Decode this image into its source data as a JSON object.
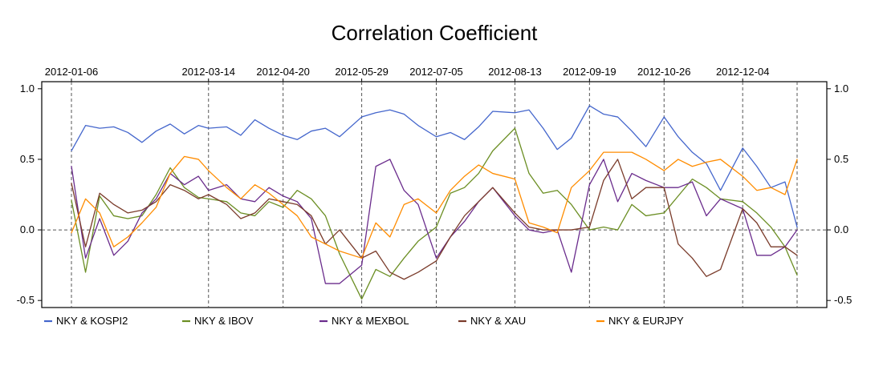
{
  "chart_data": {
    "type": "line",
    "title": "Correlation Coefficient",
    "xlabel": "",
    "ylabel": "",
    "ylim": [
      -0.55,
      1.05
    ],
    "yticks": [
      1.0,
      0.5,
      0.0,
      -0.5
    ],
    "ytick_labels": [
      "1.0",
      "0.5",
      "0.0",
      "-0.5"
    ],
    "x_tick_labels": [
      "2012-01-06",
      "2012-03-14",
      "2012-04-20",
      "2012-05-29",
      "2012-07-05",
      "2012-08-13",
      "2012-09-19",
      "2012-10-26",
      "2012-12-04"
    ],
    "grid": "dashed vertical lines at date ticks and dashed horizontal line at 0.0",
    "legend_placement": "bottom",
    "legend_format": "{a}  &  {b}",
    "colors": {
      "NKY & KOSPI2": "#4466cc",
      "NKY & IBOV": "#6b8e23",
      "NKY & MEXBOL": "#6a2c8c",
      "NKY & XAU": "#7a3b2a",
      "NKY & EURJPY": "#ff8c00"
    },
    "x": [
      "2012-01-06",
      "2012-01-13",
      "2012-01-20",
      "2012-01-27",
      "2012-02-03",
      "2012-02-10",
      "2012-02-17",
      "2012-02-24",
      "2012-03-02",
      "2012-03-09",
      "2012-03-14",
      "2012-03-23",
      "2012-03-30",
      "2012-04-06",
      "2012-04-13",
      "2012-04-20",
      "2012-04-27",
      "2012-05-04",
      "2012-05-11",
      "2012-05-18",
      "2012-05-29",
      "2012-06-05",
      "2012-06-12",
      "2012-06-19",
      "2012-06-26",
      "2012-07-05",
      "2012-07-12",
      "2012-07-19",
      "2012-07-26",
      "2012-08-02",
      "2012-08-13",
      "2012-08-20",
      "2012-08-27",
      "2012-09-03",
      "2012-09-10",
      "2012-09-19",
      "2012-09-26",
      "2012-10-03",
      "2012-10-10",
      "2012-10-17",
      "2012-10-26",
      "2012-11-02",
      "2012-11-09",
      "2012-11-16",
      "2012-11-23",
      "2012-12-04",
      "2012-12-11",
      "2012-12-18",
      "2012-12-25",
      "2012-12-31"
    ],
    "series": [
      {
        "name": "NKY & KOSPI2",
        "values": [
          0.56,
          0.74,
          0.72,
          0.73,
          0.69,
          0.62,
          0.7,
          0.75,
          0.68,
          0.74,
          0.72,
          0.73,
          0.67,
          0.78,
          0.72,
          0.67,
          0.64,
          0.7,
          0.72,
          0.66,
          0.8,
          0.83,
          0.85,
          0.82,
          0.74,
          0.66,
          0.69,
          0.64,
          0.73,
          0.84,
          0.83,
          0.85,
          0.72,
          0.57,
          0.65,
          0.88,
          0.82,
          0.8,
          0.7,
          0.59,
          0.8,
          0.66,
          0.55,
          0.47,
          0.28,
          0.58,
          0.45,
          0.3,
          0.34,
          0.02
        ]
      },
      {
        "name": "NKY & IBOV",
        "values": [
          0.21,
          -0.3,
          0.24,
          0.1,
          0.08,
          0.1,
          0.25,
          0.44,
          0.3,
          0.23,
          0.22,
          0.2,
          0.12,
          0.1,
          0.2,
          0.16,
          0.28,
          0.22,
          0.1,
          -0.17,
          -0.49,
          -0.28,
          -0.33,
          -0.2,
          -0.08,
          0.02,
          0.26,
          0.3,
          0.4,
          0.56,
          0.72,
          0.4,
          0.26,
          0.28,
          0.18,
          0.0,
          0.02,
          0.0,
          0.18,
          0.1,
          0.12,
          0.24,
          0.36,
          0.3,
          0.22,
          0.2,
          0.12,
          0.02,
          -0.12,
          -0.32
        ]
      },
      {
        "name": "NKY & MEXBOL",
        "values": [
          0.45,
          -0.2,
          0.08,
          -0.18,
          -0.08,
          0.12,
          0.22,
          0.4,
          0.32,
          0.38,
          0.28,
          0.32,
          0.22,
          0.2,
          0.3,
          0.24,
          0.2,
          0.08,
          -0.38,
          -0.38,
          -0.25,
          0.45,
          0.5,
          0.28,
          0.18,
          -0.2,
          -0.05,
          0.06,
          0.2,
          0.3,
          0.1,
          0.0,
          -0.02,
          0.0,
          -0.3,
          0.32,
          0.5,
          0.2,
          0.4,
          0.35,
          0.3,
          0.3,
          0.34,
          0.1,
          0.22,
          0.15,
          -0.18,
          -0.18,
          -0.12,
          0.0
        ]
      },
      {
        "name": "NKY & XAU",
        "values": [
          0.33,
          -0.12,
          0.26,
          0.18,
          0.12,
          0.14,
          0.2,
          0.32,
          0.28,
          0.22,
          0.25,
          0.18,
          0.08,
          0.12,
          0.22,
          0.2,
          0.18,
          0.1,
          -0.1,
          0.0,
          -0.2,
          -0.15,
          -0.3,
          -0.35,
          -0.3,
          -0.22,
          -0.05,
          0.1,
          0.2,
          0.3,
          0.12,
          0.02,
          0.0,
          0.0,
          0.0,
          0.02,
          0.35,
          0.5,
          0.22,
          0.3,
          0.3,
          -0.1,
          -0.2,
          -0.33,
          -0.28,
          0.15,
          0.05,
          -0.12,
          -0.12,
          -0.18
        ]
      },
      {
        "name": "NKY & EURJPY",
        "values": [
          -0.02,
          0.22,
          0.12,
          -0.12,
          -0.05,
          0.05,
          0.16,
          0.4,
          0.52,
          0.5,
          0.42,
          0.3,
          0.22,
          0.32,
          0.26,
          0.18,
          0.1,
          -0.05,
          -0.1,
          -0.15,
          -0.2,
          0.05,
          -0.05,
          0.18,
          0.22,
          0.12,
          0.28,
          0.38,
          0.46,
          0.4,
          0.36,
          0.05,
          0.02,
          -0.02,
          0.3,
          0.42,
          0.55,
          0.55,
          0.55,
          0.5,
          0.42,
          0.5,
          0.45,
          0.48,
          0.5,
          0.38,
          0.28,
          0.3,
          0.25,
          0.5
        ]
      }
    ]
  }
}
